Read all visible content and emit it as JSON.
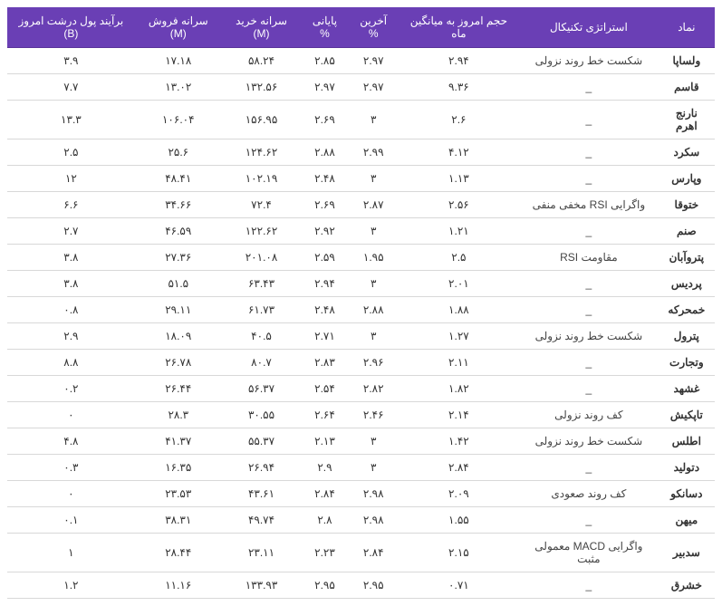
{
  "table": {
    "type": "table",
    "header_bg": "#6a3fb5",
    "header_fg": "#ffffff",
    "row_border": "#d8d8d8",
    "columns": [
      "نماد",
      "استراتژی تکنیکال",
      "حجم امروز به میانگین ماه",
      "آخرین %",
      "پایانی %",
      "سرانه خرید (M)",
      "سرانه فروش (M)",
      "برآیند پول درشت امروز (B)"
    ],
    "rows": [
      [
        "ولساپا",
        "شکست خط روند نزولی",
        "۲.۹۴",
        "۲.۹۷",
        "۲.۸۵",
        "۵۸.۲۴",
        "۱۷.۱۸",
        "۳.۹"
      ],
      [
        "قاسم",
        "_",
        "۹.۳۶",
        "۲.۹۷",
        "۲.۹۷",
        "۱۳۲.۵۶",
        "۱۳.۰۲",
        "۷.۷"
      ],
      [
        "نارنج اهرم",
        "_",
        "۲.۶",
        "۳",
        "۲.۶۹",
        "۱۵۶.۹۵",
        "۱۰۶.۰۴",
        "۱۳.۳"
      ],
      [
        "سکرد",
        "_",
        "۴.۱۲",
        "۲.۹۹",
        "۲.۸۸",
        "۱۲۴.۶۲",
        "۲۵.۶",
        "۲.۵"
      ],
      [
        "وپارس",
        "_",
        "۱.۱۳",
        "۳",
        "۲.۴۸",
        "۱۰۲.۱۹",
        "۴۸.۴۱",
        "۱۲"
      ],
      [
        "ختوقا",
        "واگرایی RSI مخفی منفی",
        "۲.۵۶",
        "۲.۸۷",
        "۲.۶۹",
        "۷۲.۴",
        "۳۴.۶۶",
        "۶.۶"
      ],
      [
        "صنم",
        "_",
        "۱.۲۱",
        "۳",
        "۲.۹۲",
        "۱۲۲.۶۲",
        "۴۶.۵۹",
        "۲.۷"
      ],
      [
        "پتروآبان",
        "مقاومت RSI",
        "۲.۵",
        "۱.۹۵",
        "۲.۵۹",
        "۲۰۱.۰۸",
        "۲۷.۳۶",
        "۳.۸"
      ],
      [
        "پردیس",
        "_",
        "۲.۰۱",
        "۳",
        "۲.۹۴",
        "۶۳.۴۳",
        "۵۱.۵",
        "۳.۸"
      ],
      [
        "خمحرکه",
        "_",
        "۱.۸۸",
        "۲.۸۸",
        "۲.۴۸",
        "۶۱.۷۳",
        "۲۹.۱۱",
        "۰.۸"
      ],
      [
        "پترول",
        "شکست خط روند نزولی",
        "۱.۲۷",
        "۳",
        "۲.۷۱",
        "۴۰.۵",
        "۱۸.۰۹",
        "۲.۹"
      ],
      [
        "وتجارت",
        "_",
        "۲.۱۱",
        "۲.۹۶",
        "۲.۸۳",
        "۸۰.۷",
        "۲۶.۷۸",
        "۸.۸"
      ],
      [
        "غشهد",
        "_",
        "۱.۸۲",
        "۲.۸۲",
        "۲.۵۴",
        "۵۶.۳۷",
        "۲۶.۴۴",
        "۰.۲"
      ],
      [
        "تاپکیش",
        "کف روند نزولی",
        "۲.۱۴",
        "۲.۴۶",
        "۲.۶۴",
        "۳۰.۵۵",
        "۲۸.۳",
        "۰"
      ],
      [
        "اطلس",
        "شکست خط روند نزولی",
        "۱.۴۲",
        "۳",
        "۲.۱۳",
        "۵۵.۳۷",
        "۴۱.۳۷",
        "۴.۸"
      ],
      [
        "دتولید",
        "_",
        "۲.۸۴",
        "۳",
        "۲.۹",
        "۲۶.۹۴",
        "۱۶.۳۵",
        "۰.۳"
      ],
      [
        "دسانکو",
        "کف روند صعودی",
        "۲.۰۹",
        "۲.۹۸",
        "۲.۸۴",
        "۴۳.۶۱",
        "۲۳.۵۳",
        "۰"
      ],
      [
        "میهن",
        "_",
        "۱.۵۵",
        "۲.۹۸",
        "۲.۸",
        "۴۹.۷۴",
        "۳۸.۳۱",
        "۰.۱"
      ],
      [
        "سدبیر",
        "واگرایی MACD معمولی مثبت",
        "۲.۱۵",
        "۲.۸۴",
        "۲.۲۳",
        "۲۳.۱۱",
        "۲۸.۴۴",
        "۱"
      ],
      [
        "خشرق",
        "_",
        "۰.۷۱",
        "۲.۹۵",
        "۲.۹۵",
        "۱۳۳.۹۳",
        "۱۱.۱۶",
        "۱.۲"
      ]
    ]
  }
}
